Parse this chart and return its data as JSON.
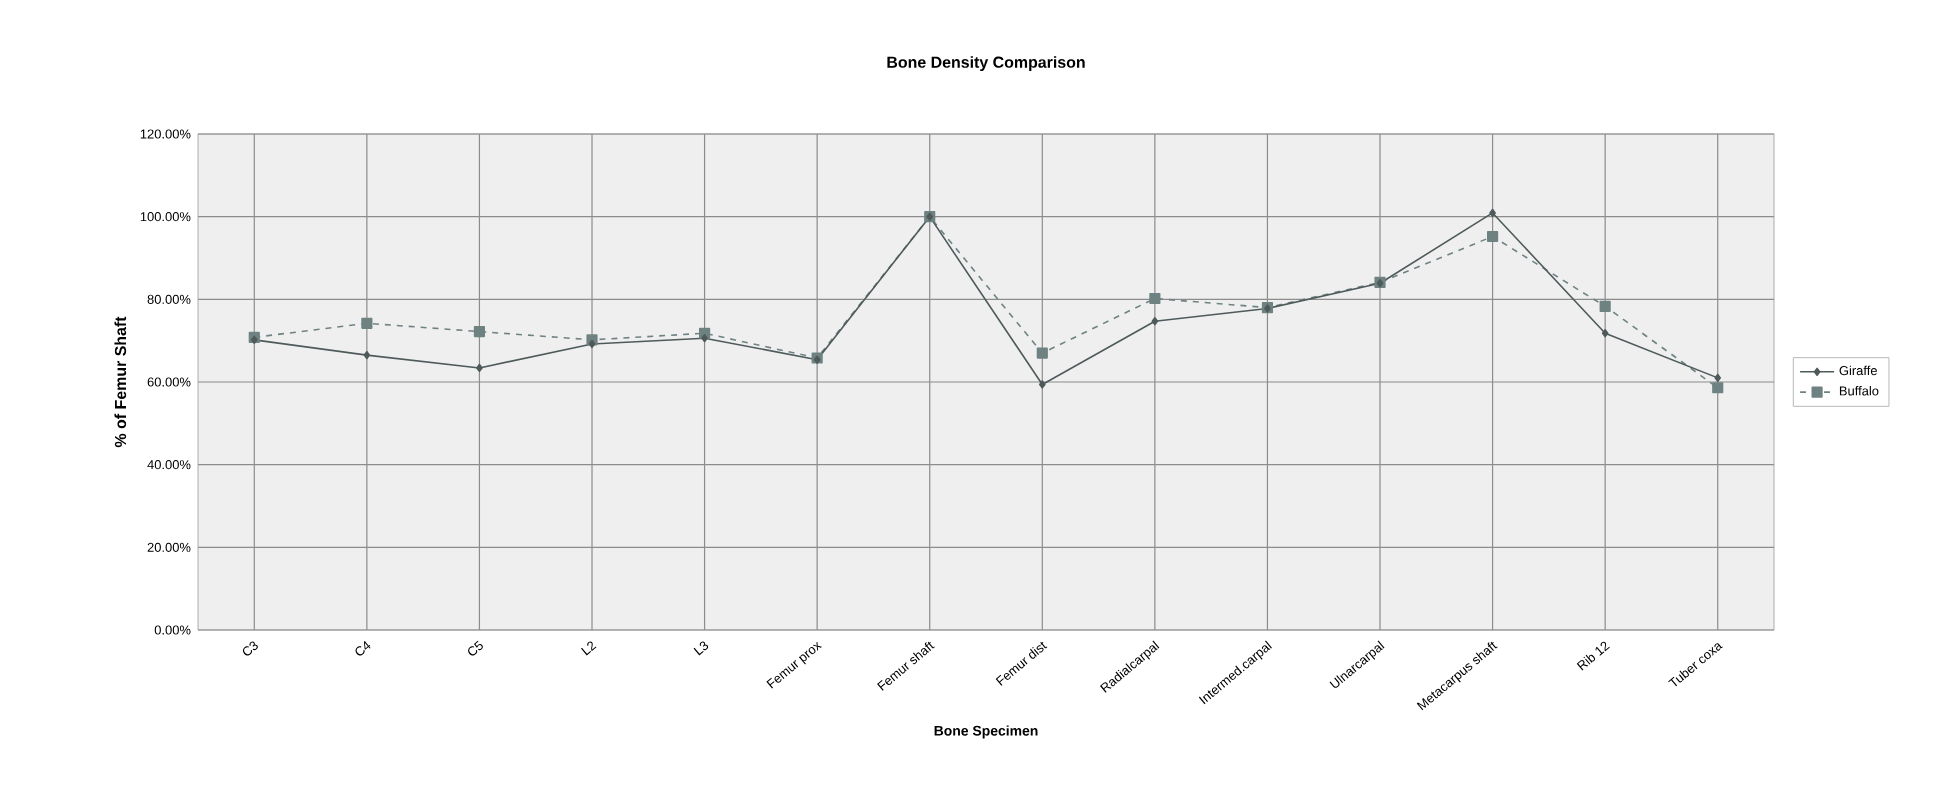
{
  "chart_data": {
    "type": "line",
    "title": "Bone Density Comparison",
    "xlabel": "Bone Specimen",
    "ylabel": "% of Femur Shaft",
    "categories": [
      "C3",
      "C4",
      "C5",
      "L2",
      "L3",
      "Femur prox",
      "Femur shaft",
      "Femur dist",
      "Radialcarpal",
      "Intermed.carpal",
      "Ulnarcarpal",
      "Metacarpus shaft",
      "Rib 12",
      "Tuber coxa"
    ],
    "series": [
      {
        "name": "Giraffe",
        "color": "#4f5a5a",
        "marker": "diamond",
        "line_style": "solid",
        "values": [
          70.2,
          66.5,
          63.4,
          69.2,
          70.6,
          65.4,
          100,
          59.4,
          74.7,
          77.8,
          83.9,
          100.9,
          71.8,
          61
        ]
      },
      {
        "name": "Buffalo",
        "color": "#6f8282",
        "marker": "square",
        "line_style": "dashed",
        "values": [
          70.8,
          74.2,
          72.2,
          70.2,
          71.8,
          65.8,
          100,
          67,
          80.2,
          78,
          84.1,
          95.2,
          78.3,
          58.6
        ]
      }
    ],
    "ylim": [
      0,
      120
    ],
    "yticks": [
      {
        "value": 0,
        "label": "0.00%"
      },
      {
        "value": 20,
        "label": "20.00%"
      },
      {
        "value": 40,
        "label": "40.00%"
      },
      {
        "value": 60,
        "label": "60.00%"
      },
      {
        "value": 80,
        "label": "80.00%"
      },
      {
        "value": 100,
        "label": "100.00%"
      },
      {
        "value": 120,
        "label": "120.00%"
      }
    ],
    "grid": true,
    "legend": "right"
  }
}
